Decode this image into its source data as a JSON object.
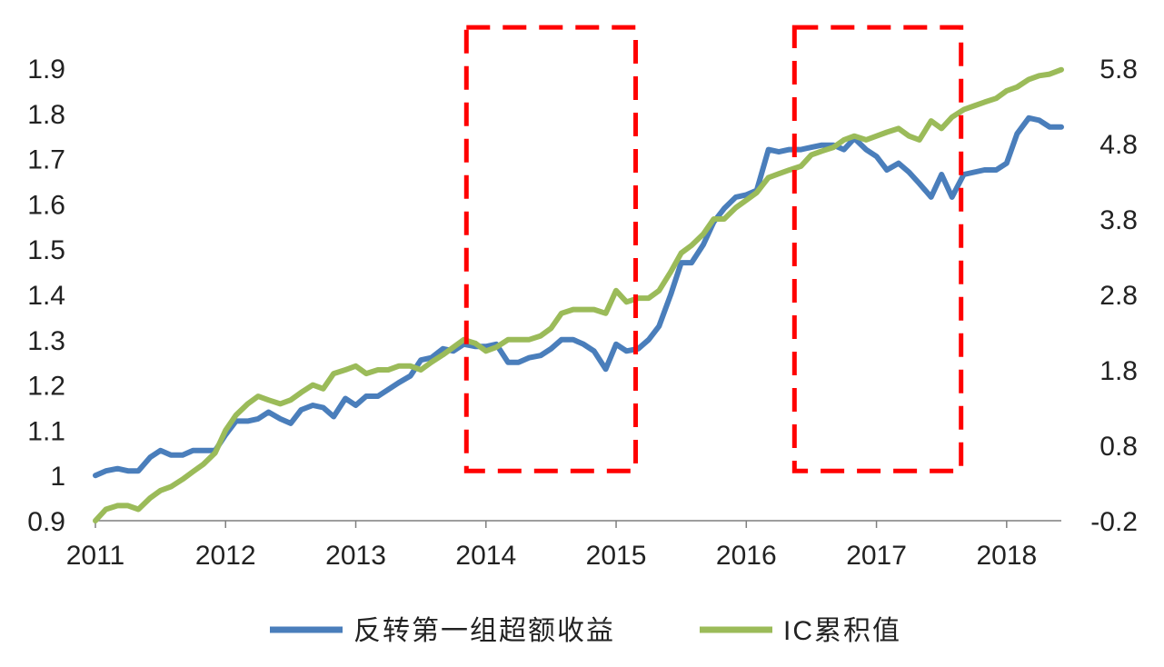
{
  "chart_data": {
    "type": "line",
    "title": "",
    "xlabel": "",
    "ylabel": "",
    "x_ticks": [
      "2011",
      "2012",
      "2013",
      "2014",
      "2015",
      "2016",
      "2017",
      "2018"
    ],
    "x_range": [
      2011,
      2018.42
    ],
    "y_left": {
      "ticks": [
        "0.9",
        "1",
        "1.1",
        "1.2",
        "1.3",
        "1.4",
        "1.5",
        "1.6",
        "1.7",
        "1.8",
        "1.9"
      ],
      "lim": [
        0.9,
        1.9
      ]
    },
    "y_right": {
      "ticks": [
        "-0.2",
        "0.8",
        "1.8",
        "2.8",
        "3.8",
        "4.8",
        "5.8"
      ],
      "lim": [
        -0.2,
        5.8
      ]
    },
    "grid": false,
    "legend_position": "bottom",
    "series": [
      {
        "name": "反转第一组超额收益",
        "axis": "left",
        "color": "#4a7ebb",
        "points": [
          [
            2011.0,
            1.0
          ],
          [
            2011.08,
            1.01
          ],
          [
            2011.17,
            1.015
          ],
          [
            2011.25,
            1.01
          ],
          [
            2011.33,
            1.01
          ],
          [
            2011.42,
            1.04
          ],
          [
            2011.5,
            1.055
          ],
          [
            2011.58,
            1.045
          ],
          [
            2011.67,
            1.045
          ],
          [
            2011.75,
            1.055
          ],
          [
            2011.83,
            1.055
          ],
          [
            2011.92,
            1.055
          ],
          [
            2012.0,
            1.09
          ],
          [
            2012.08,
            1.12
          ],
          [
            2012.17,
            1.12
          ],
          [
            2012.25,
            1.125
          ],
          [
            2012.33,
            1.14
          ],
          [
            2012.42,
            1.125
          ],
          [
            2012.5,
            1.115
          ],
          [
            2012.58,
            1.145
          ],
          [
            2012.67,
            1.155
          ],
          [
            2012.75,
            1.15
          ],
          [
            2012.83,
            1.13
          ],
          [
            2012.92,
            1.17
          ],
          [
            2013.0,
            1.155
          ],
          [
            2013.08,
            1.175
          ],
          [
            2013.17,
            1.175
          ],
          [
            2013.25,
            1.19
          ],
          [
            2013.33,
            1.205
          ],
          [
            2013.42,
            1.22
          ],
          [
            2013.5,
            1.255
          ],
          [
            2013.58,
            1.26
          ],
          [
            2013.67,
            1.28
          ],
          [
            2013.75,
            1.275
          ],
          [
            2013.83,
            1.29
          ],
          [
            2013.92,
            1.285
          ],
          [
            2014.0,
            1.285
          ],
          [
            2014.08,
            1.29
          ],
          [
            2014.17,
            1.25
          ],
          [
            2014.25,
            1.25
          ],
          [
            2014.33,
            1.26
          ],
          [
            2014.42,
            1.265
          ],
          [
            2014.5,
            1.28
          ],
          [
            2014.58,
            1.3
          ],
          [
            2014.67,
            1.3
          ],
          [
            2014.75,
            1.29
          ],
          [
            2014.83,
            1.275
          ],
          [
            2014.92,
            1.235
          ],
          [
            2015.0,
            1.29
          ],
          [
            2015.08,
            1.275
          ],
          [
            2015.17,
            1.28
          ],
          [
            2015.25,
            1.3
          ],
          [
            2015.33,
            1.33
          ],
          [
            2015.42,
            1.4
          ],
          [
            2015.5,
            1.47
          ],
          [
            2015.58,
            1.47
          ],
          [
            2015.67,
            1.51
          ],
          [
            2015.75,
            1.56
          ],
          [
            2015.83,
            1.59
          ],
          [
            2015.92,
            1.615
          ],
          [
            2016.0,
            1.62
          ],
          [
            2016.08,
            1.63
          ],
          [
            2016.17,
            1.72
          ],
          [
            2016.25,
            1.715
          ],
          [
            2016.33,
            1.72
          ],
          [
            2016.42,
            1.72
          ],
          [
            2016.5,
            1.725
          ],
          [
            2016.58,
            1.73
          ],
          [
            2016.67,
            1.73
          ],
          [
            2016.75,
            1.72
          ],
          [
            2016.83,
            1.745
          ],
          [
            2016.92,
            1.72
          ],
          [
            2017.0,
            1.705
          ],
          [
            2017.08,
            1.675
          ],
          [
            2017.17,
            1.69
          ],
          [
            2017.25,
            1.67
          ],
          [
            2017.33,
            1.645
          ],
          [
            2017.42,
            1.615
          ],
          [
            2017.5,
            1.665
          ],
          [
            2017.58,
            1.615
          ],
          [
            2017.67,
            1.665
          ],
          [
            2017.75,
            1.67
          ],
          [
            2017.83,
            1.675
          ],
          [
            2017.92,
            1.675
          ],
          [
            2018.0,
            1.69
          ],
          [
            2018.08,
            1.755
          ],
          [
            2018.17,
            1.79
          ],
          [
            2018.25,
            1.785
          ],
          [
            2018.33,
            1.77
          ],
          [
            2018.42,
            1.77
          ]
        ]
      },
      {
        "name": "IC累积值",
        "axis": "right",
        "color": "#9bbb59",
        "points": [
          [
            2011.0,
            -0.2
          ],
          [
            2011.08,
            -0.05
          ],
          [
            2011.17,
            0.0
          ],
          [
            2011.25,
            0.0
          ],
          [
            2011.33,
            -0.05
          ],
          [
            2011.42,
            0.1
          ],
          [
            2011.5,
            0.2
          ],
          [
            2011.58,
            0.25
          ],
          [
            2011.67,
            0.35
          ],
          [
            2011.75,
            0.45
          ],
          [
            2011.83,
            0.55
          ],
          [
            2011.92,
            0.7
          ],
          [
            2012.0,
            1.0
          ],
          [
            2012.08,
            1.2
          ],
          [
            2012.17,
            1.35
          ],
          [
            2012.25,
            1.45
          ],
          [
            2012.33,
            1.4
          ],
          [
            2012.42,
            1.35
          ],
          [
            2012.5,
            1.4
          ],
          [
            2012.58,
            1.5
          ],
          [
            2012.67,
            1.6
          ],
          [
            2012.75,
            1.55
          ],
          [
            2012.83,
            1.75
          ],
          [
            2012.92,
            1.8
          ],
          [
            2013.0,
            1.85
          ],
          [
            2013.08,
            1.75
          ],
          [
            2013.17,
            1.8
          ],
          [
            2013.25,
            1.8
          ],
          [
            2013.33,
            1.85
          ],
          [
            2013.42,
            1.85
          ],
          [
            2013.5,
            1.8
          ],
          [
            2013.58,
            1.9
          ],
          [
            2013.67,
            2.0
          ],
          [
            2013.75,
            2.1
          ],
          [
            2013.83,
            2.2
          ],
          [
            2013.92,
            2.15
          ],
          [
            2014.0,
            2.05
          ],
          [
            2014.08,
            2.1
          ],
          [
            2014.17,
            2.2
          ],
          [
            2014.25,
            2.2
          ],
          [
            2014.33,
            2.2
          ],
          [
            2014.42,
            2.25
          ],
          [
            2014.5,
            2.35
          ],
          [
            2014.58,
            2.55
          ],
          [
            2014.67,
            2.6
          ],
          [
            2014.75,
            2.6
          ],
          [
            2014.83,
            2.6
          ],
          [
            2014.92,
            2.55
          ],
          [
            2015.0,
            2.85
          ],
          [
            2015.08,
            2.7
          ],
          [
            2015.17,
            2.75
          ],
          [
            2015.25,
            2.75
          ],
          [
            2015.33,
            2.85
          ],
          [
            2015.42,
            3.1
          ],
          [
            2015.5,
            3.35
          ],
          [
            2015.58,
            3.45
          ],
          [
            2015.67,
            3.6
          ],
          [
            2015.75,
            3.8
          ],
          [
            2015.83,
            3.8
          ],
          [
            2015.92,
            3.95
          ],
          [
            2016.0,
            4.05
          ],
          [
            2016.08,
            4.15
          ],
          [
            2016.17,
            4.35
          ],
          [
            2016.25,
            4.4
          ],
          [
            2016.33,
            4.45
          ],
          [
            2016.42,
            4.5
          ],
          [
            2016.5,
            4.65
          ],
          [
            2016.58,
            4.7
          ],
          [
            2016.67,
            4.75
          ],
          [
            2016.75,
            4.85
          ],
          [
            2016.83,
            4.9
          ],
          [
            2016.92,
            4.85
          ],
          [
            2017.0,
            4.9
          ],
          [
            2017.08,
            4.95
          ],
          [
            2017.17,
            5.0
          ],
          [
            2017.25,
            4.9
          ],
          [
            2017.33,
            4.85
          ],
          [
            2017.42,
            5.1
          ],
          [
            2017.5,
            5.0
          ],
          [
            2017.58,
            5.15
          ],
          [
            2017.67,
            5.25
          ],
          [
            2017.75,
            5.3
          ],
          [
            2017.83,
            5.35
          ],
          [
            2017.92,
            5.4
          ],
          [
            2018.0,
            5.5
          ],
          [
            2018.08,
            5.55
          ],
          [
            2018.17,
            5.65
          ],
          [
            2018.25,
            5.7
          ],
          [
            2018.33,
            5.72
          ],
          [
            2018.42,
            5.78
          ]
        ]
      }
    ],
    "highlight_boxes": [
      {
        "x0": 2013.85,
        "x1": 2015.15,
        "y0": 1.01,
        "y1": 1.99,
        "color": "#ff0000"
      },
      {
        "x0": 2016.37,
        "x1": 2017.65,
        "y0": 1.01,
        "y1": 1.99,
        "color": "#ff0000"
      }
    ]
  }
}
